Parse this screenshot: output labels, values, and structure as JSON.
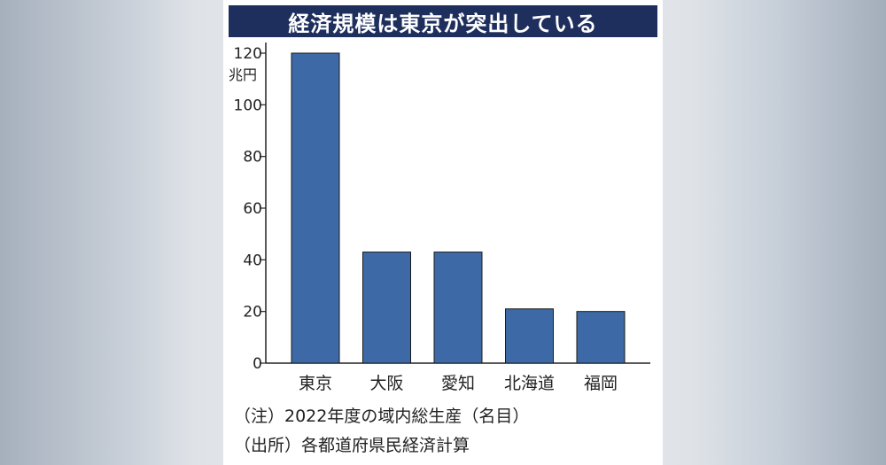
{
  "chart_data": {
    "type": "bar",
    "title": "経済規模は東京が突出している",
    "unit": "兆円",
    "categories": [
      "東京",
      "大阪",
      "愛知",
      "北海道",
      "福岡"
    ],
    "values": [
      120,
      43,
      43,
      21,
      20
    ],
    "ylim": [
      0,
      120
    ],
    "yticks": [
      0,
      20,
      40,
      60,
      80,
      100,
      120
    ],
    "xlabel": "",
    "ylabel": "",
    "grid": false,
    "bar_color": "#3d6aa6"
  },
  "notes": {
    "note": "（注）2022年度の域内総生産（名目）",
    "source": "（出所）各都道府県民経済計算"
  },
  "colors": {
    "title_bg": "#1e2f5e",
    "title_text": "#ffffff",
    "axis": "#222222"
  }
}
